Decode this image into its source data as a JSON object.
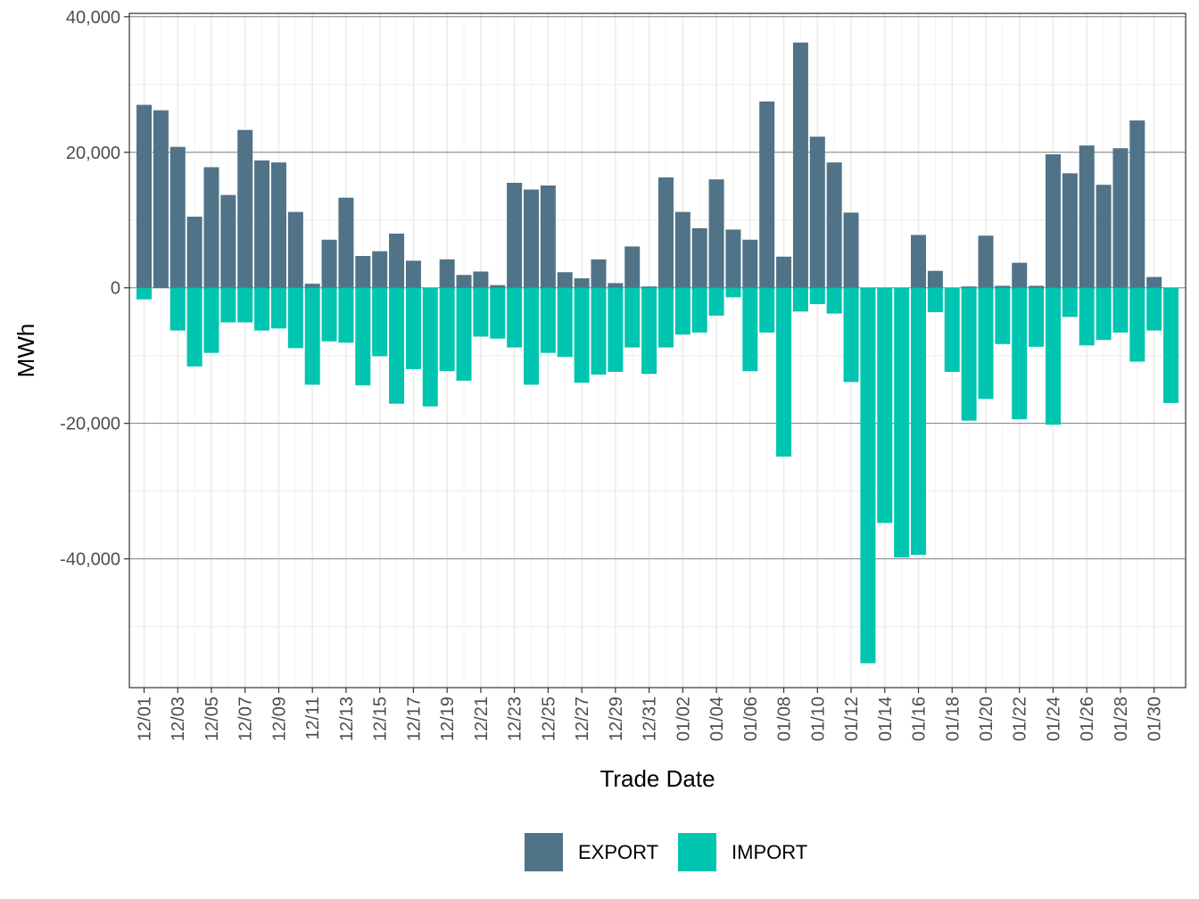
{
  "chart_data": {
    "type": "bar",
    "stacked": true,
    "xlabel": "Trade Date",
    "ylabel": "MWh",
    "ylim": [
      -59000,
      40500
    ],
    "yticks": [
      40000,
      20000,
      0,
      -20000,
      -40000
    ],
    "ytick_labels": [
      "40,000",
      "20,000",
      "0",
      "-20,000",
      "-40,000"
    ],
    "grid": true,
    "legend_position": "bottom",
    "colors": {
      "EXPORT": "#507387",
      "IMPORT": "#00c5b0"
    },
    "categories": [
      "12/01",
      "12/02",
      "12/03",
      "12/04",
      "12/05",
      "12/06",
      "12/07",
      "12/08",
      "12/09",
      "12/10",
      "12/11",
      "12/12",
      "12/13",
      "12/14",
      "12/15",
      "12/16",
      "12/17",
      "12/18",
      "12/19",
      "12/20",
      "12/21",
      "12/22",
      "12/23",
      "12/24",
      "12/25",
      "12/26",
      "12/27",
      "12/28",
      "12/29",
      "12/30",
      "12/31",
      "01/01",
      "01/02",
      "01/03",
      "01/04",
      "01/05",
      "01/06",
      "01/07",
      "01/08",
      "01/09",
      "01/10",
      "01/11",
      "01/12",
      "01/13",
      "01/14",
      "01/15",
      "01/16",
      "01/17",
      "01/18",
      "01/19",
      "01/20",
      "01/21",
      "01/22",
      "01/23",
      "01/24",
      "01/25",
      "01/26",
      "01/27",
      "01/28",
      "01/29",
      "01/30",
      "01/31"
    ],
    "tick_labels": [
      "12/01",
      "12/03",
      "12/05",
      "12/07",
      "12/09",
      "12/11",
      "12/13",
      "12/15",
      "12/17",
      "12/19",
      "12/21",
      "12/23",
      "12/25",
      "12/27",
      "12/29",
      "12/31",
      "01/02",
      "01/04",
      "01/06",
      "01/08",
      "01/10",
      "01/12",
      "01/14",
      "01/16",
      "01/18",
      "01/20",
      "01/22",
      "01/24",
      "01/26",
      "01/28",
      "01/30"
    ],
    "series": [
      {
        "name": "EXPORT",
        "values": [
          27000,
          26200,
          20800,
          10500,
          17800,
          13700,
          23300,
          18800,
          18500,
          11200,
          600,
          7100,
          13300,
          4700,
          5400,
          8000,
          4000,
          0,
          4200,
          1900,
          2400,
          400,
          15500,
          14500,
          15100,
          2300,
          1400,
          4200,
          700,
          6100,
          200,
          16300,
          11200,
          8800,
          16000,
          8600,
          7100,
          27500,
          4600,
          36200,
          22300,
          18500,
          11100,
          0,
          0,
          0,
          7800,
          2500,
          0,
          200,
          7700,
          300,
          3700,
          300,
          19700,
          16900,
          21000,
          15200,
          20600,
          24700,
          1600,
          0
        ]
      },
      {
        "name": "IMPORT",
        "values": [
          -1700,
          0,
          -6300,
          -11600,
          -9600,
          -5100,
          -5100,
          -6300,
          -6000,
          -8900,
          -14300,
          -7900,
          -8100,
          -14400,
          -10100,
          -17100,
          -12000,
          -17500,
          -12300,
          -13700,
          -7200,
          -7500,
          -8800,
          -14300,
          -9600,
          -10200,
          -14000,
          -12800,
          -12400,
          -8800,
          -12700,
          -8800,
          -6900,
          -6600,
          -4100,
          -1400,
          -12300,
          -6600,
          -24900,
          -3500,
          -2400,
          -3800,
          -13900,
          -55400,
          -34700,
          -39800,
          -39400,
          -3600,
          -12400,
          -19600,
          -16400,
          -8300,
          -19400,
          -8700,
          -20200,
          -4300,
          -8500,
          -7700,
          -6600,
          -10900,
          -6300,
          -17000
        ]
      }
    ]
  }
}
